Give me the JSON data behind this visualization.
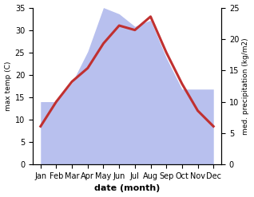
{
  "months": [
    "Jan",
    "Feb",
    "Mar",
    "Apr",
    "May",
    "Jun",
    "Jul",
    "Aug",
    "Sep",
    "Oct",
    "Nov",
    "Dec"
  ],
  "temperature": [
    8.5,
    14.0,
    18.5,
    21.5,
    27.0,
    31.0,
    30.0,
    33.0,
    25.0,
    18.0,
    12.0,
    8.5
  ],
  "precipitation": [
    10.0,
    10.0,
    13.0,
    18.0,
    25.0,
    24.0,
    22.0,
    23.0,
    17.0,
    12.0,
    12.0,
    12.0
  ],
  "temp_color": "#c03030",
  "precip_fill_color": "#b8c0ee",
  "xlabel": "date (month)",
  "ylabel_left": "max temp (C)",
  "ylabel_right": "med. precipitation (kg/m2)",
  "ylim_left": [
    0,
    35
  ],
  "ylim_right": [
    0,
    25
  ],
  "yticks_left": [
    0,
    5,
    10,
    15,
    20,
    25,
    30,
    35
  ],
  "yticks_right": [
    0,
    5,
    10,
    15,
    20,
    25
  ],
  "temp_linewidth": 2.2,
  "figsize": [
    3.18,
    2.47
  ],
  "dpi": 100
}
